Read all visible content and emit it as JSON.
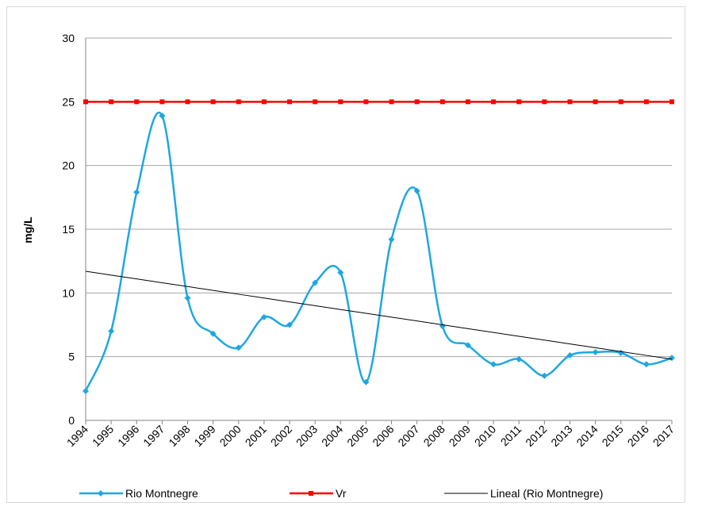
{
  "chart_data": {
    "type": "line",
    "y_label": "mg/L",
    "categories": [
      "1994",
      "1995",
      "1996",
      "1997",
      "1998",
      "1999",
      "2000",
      "2001",
      "2002",
      "2003",
      "2004",
      "2005",
      "2006",
      "2007",
      "2008",
      "2009",
      "2010",
      "2011",
      "2012",
      "2013",
      "2014",
      "2015",
      "2016",
      "2017"
    ],
    "series": [
      {
        "name": "Rio Montnegre",
        "color": "#1ea7e1",
        "smooth": true,
        "marker": "diamond",
        "values": [
          2.3,
          7.0,
          17.9,
          23.9,
          9.6,
          6.8,
          5.7,
          8.1,
          7.5,
          10.8,
          11.6,
          3.0,
          14.2,
          18.0,
          7.4,
          5.9,
          4.4,
          4.8,
          3.5,
          5.1,
          5.35,
          5.3,
          4.4,
          4.9
        ]
      },
      {
        "name": "Vr",
        "color": "#ff0000",
        "smooth": false,
        "marker": "square",
        "values": [
          25,
          25,
          25,
          25,
          25,
          25,
          25,
          25,
          25,
          25,
          25,
          25,
          25,
          25,
          25,
          25,
          25,
          25,
          25,
          25,
          25,
          25,
          25,
          25
        ]
      },
      {
        "name": "Lineal (Rio Montnegre)",
        "color": "#000000",
        "smooth": false,
        "marker": "none",
        "values": [
          11.7,
          11.4,
          11.1,
          10.8,
          10.5,
          10.2,
          9.9,
          9.6,
          9.3,
          9.0,
          8.7,
          8.4,
          8.1,
          7.8,
          7.5,
          7.2,
          6.9,
          6.6,
          6.3,
          6.0,
          5.7,
          5.4,
          5.1,
          4.8
        ]
      }
    ],
    "ylim": [
      0,
      30
    ],
    "yticks": [
      0,
      5,
      10,
      15,
      20,
      25,
      30
    ],
    "grid": true,
    "legend": "bottom"
  }
}
